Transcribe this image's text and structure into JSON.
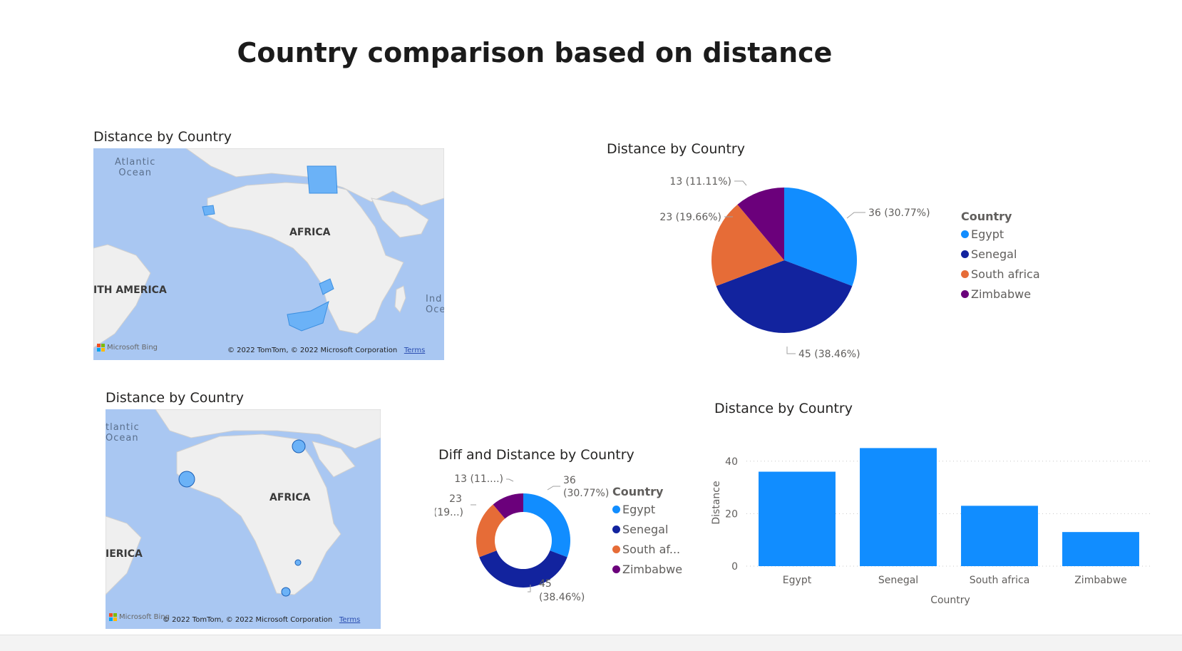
{
  "page_title": "Country comparison based on distance",
  "colors": {
    "egypt": "#118dff",
    "senegal": "#12239e",
    "south_africa": "#e66c37",
    "zimbabwe": "#6b007b",
    "map_water": "#a9c7f2",
    "map_land": "#efefef"
  },
  "map1": {
    "title": "Distance by Country",
    "labels": {
      "atlantic": "Atlantic\nOcean",
      "africa": "AFRICA",
      "america": "ITH AMERICA",
      "indian": "Ind\nOce"
    },
    "bing": "Microsoft Bing",
    "credit": "© 2022 TomTom, © 2022 Microsoft Corporation",
    "terms": "Terms"
  },
  "map2": {
    "title": "Distance by Country",
    "labels": {
      "atlantic": "tlantic\nOcean",
      "africa": "AFRICA",
      "america": "IERICA"
    },
    "bing": "Microsoft Bing",
    "credit": "© 2022 TomTom, © 2022 Microsoft Corporation",
    "terms": "Terms"
  },
  "pie": {
    "title": "Distance by Country",
    "legend_title": "Country",
    "legend": [
      "Egypt",
      "Senegal",
      "South africa",
      "Zimbabwe"
    ],
    "labels": [
      "36 (30.77%)",
      "45 (38.46%)",
      "23 (19.66%)",
      "13 (11.11%)"
    ]
  },
  "donut": {
    "title": "Diff and Distance by Country",
    "legend_title": "Country",
    "legend": [
      "Egypt",
      "Senegal",
      "South af...",
      "Zimbabwe"
    ],
    "labels": {
      "egypt": [
        "36",
        "(30.77%)"
      ],
      "senegal": [
        "45",
        "(38.46%)"
      ],
      "south_africa": [
        "23",
        "(19...)"
      ],
      "zimbabwe": [
        "13 (11....)"
      ]
    }
  },
  "bar": {
    "title": "Distance by Country",
    "xlabel": "Country",
    "ylabel": "Distance"
  },
  "chart_data": [
    {
      "type": "pie",
      "title": "Distance by Country",
      "categories": [
        "Egypt",
        "Senegal",
        "South africa",
        "Zimbabwe"
      ],
      "values": [
        36,
        45,
        23,
        13
      ],
      "legend": "right"
    },
    {
      "type": "pie",
      "title": "Diff and Distance by Country",
      "donut": true,
      "categories": [
        "Egypt",
        "Senegal",
        "South africa",
        "Zimbabwe"
      ],
      "values": [
        36,
        45,
        23,
        13
      ],
      "legend": "right"
    },
    {
      "type": "bar",
      "title": "Distance by Country",
      "categories": [
        "Egypt",
        "Senegal",
        "South africa",
        "Zimbabwe"
      ],
      "values": [
        36,
        45,
        23,
        13
      ],
      "xlabel": "Country",
      "ylabel": "Distance",
      "ylim": [
        0,
        50
      ],
      "yticks": [
        0,
        20,
        40
      ],
      "grid": true
    }
  ]
}
